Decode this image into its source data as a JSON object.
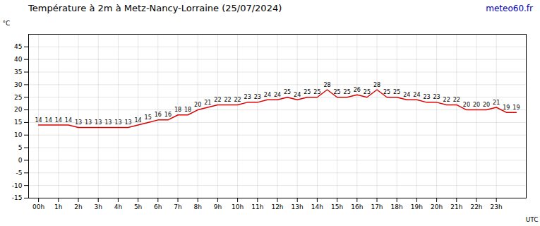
{
  "chart_data": {
    "type": "line",
    "title": "Température à 2m à Metz-Nancy-Lorraine (25/07/2024)",
    "xlabel": "UTC",
    "ylabel": "°C",
    "annotations": [
      {
        "text": "meteo60.fr",
        "color": "#0000bb"
      }
    ],
    "x": [
      0,
      0.5,
      1,
      1.5,
      2,
      2.5,
      3,
      3.5,
      4,
      4.5,
      5,
      5.5,
      6,
      6.5,
      7,
      7.5,
      8,
      8.5,
      9,
      9.5,
      10,
      10.5,
      11,
      11.5,
      12,
      12.5,
      13,
      13.5,
      14,
      14.5,
      15,
      15.5,
      16,
      16.5,
      17,
      17.5,
      18,
      18.5,
      19,
      19.5,
      20,
      20.5,
      21,
      21.5,
      22,
      22.5,
      23,
      23.5,
      24
    ],
    "values": [
      14,
      14,
      14,
      14,
      13,
      13,
      13,
      13,
      13,
      13,
      14,
      15,
      16,
      16,
      18,
      18,
      20,
      21,
      22,
      22,
      22,
      23,
      23,
      24,
      24,
      25,
      24,
      25,
      25,
      28,
      25,
      25,
      26,
      25,
      28,
      25,
      25,
      24,
      24,
      23,
      23,
      22,
      22,
      20,
      20,
      20,
      21,
      19,
      19
    ],
    "color": "#dd0000",
    "data_labels": true,
    "grid": true,
    "xlim": [
      -0.5,
      24.5
    ],
    "xticks": [
      {
        "value": 0,
        "label": "00h"
      },
      {
        "value": 1,
        "label": "1h"
      },
      {
        "value": 2,
        "label": "2h"
      },
      {
        "value": 3,
        "label": "3h"
      },
      {
        "value": 4,
        "label": "4h"
      },
      {
        "value": 5,
        "label": "5h"
      },
      {
        "value": 6,
        "label": "6h"
      },
      {
        "value": 7,
        "label": "7h"
      },
      {
        "value": 8,
        "label": "8h"
      },
      {
        "value": 9,
        "label": "9h"
      },
      {
        "value": 10,
        "label": "10h"
      },
      {
        "value": 11,
        "label": "11h"
      },
      {
        "value": 12,
        "label": "12h"
      },
      {
        "value": 13,
        "label": "13h"
      },
      {
        "value": 14,
        "label": "14h"
      },
      {
        "value": 15,
        "label": "15h"
      },
      {
        "value": 16,
        "label": "16h"
      },
      {
        "value": 17,
        "label": "17h"
      },
      {
        "value": 18,
        "label": "18h"
      },
      {
        "value": 19,
        "label": "19h"
      },
      {
        "value": 20,
        "label": "20h"
      },
      {
        "value": 21,
        "label": "21h"
      },
      {
        "value": 22,
        "label": "22h"
      },
      {
        "value": 23,
        "label": "23h"
      }
    ],
    "ylim": [
      -15,
      50
    ],
    "yticks": [
      -15,
      -10,
      -5,
      0,
      5,
      10,
      15,
      20,
      25,
      30,
      35,
      40,
      45
    ]
  }
}
